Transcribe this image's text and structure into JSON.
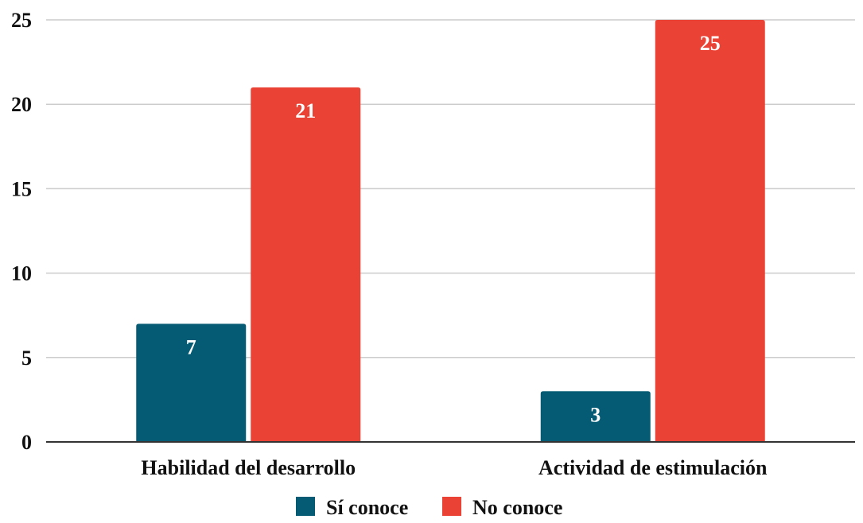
{
  "chart_data": {
    "type": "bar",
    "categories": [
      "Habilidad del desarrollo",
      "Actividad de estimulación"
    ],
    "series": [
      {
        "name": "Sí conoce",
        "values": [
          7,
          3
        ],
        "color": "#055b73"
      },
      {
        "name": "No conoce",
        "values": [
          21,
          25
        ],
        "color": "#ea4335"
      }
    ],
    "ylim": [
      0,
      25
    ],
    "yticks": [
      0,
      5,
      10,
      15,
      20,
      25
    ],
    "grid": true,
    "legend": "bottom",
    "data_labels": true
  }
}
